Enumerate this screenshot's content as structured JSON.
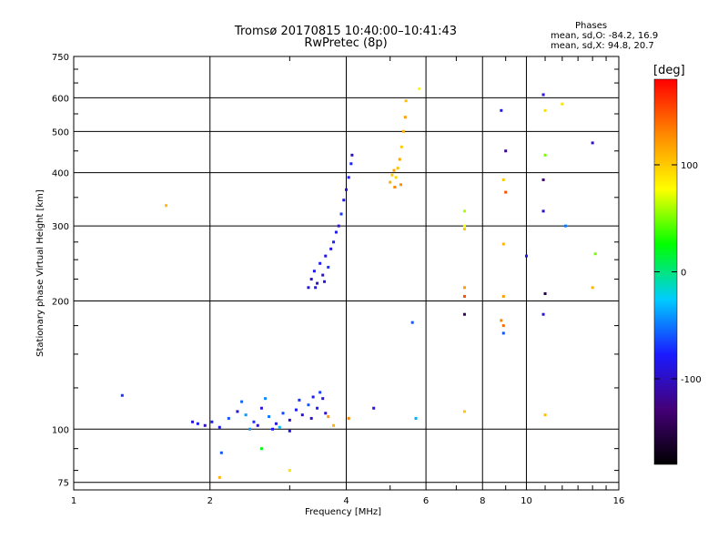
{
  "header": {
    "title_line1": "Tromsø 20170815 10:40:00–10:41:43",
    "title_line2": "RwPretec (8p)"
  },
  "phase_stats": {
    "heading": "Phases",
    "line_o": "mean, sd,O: -84.2, 16.9",
    "line_x": "mean, sd,X:  94.8, 20.7"
  },
  "chart_data": {
    "type": "scatter",
    "xlabel": "Frequency [MHz]",
    "ylabel": "Stationary phase Virtual Height [km]",
    "x_scale": "log",
    "y_scale": "log",
    "xlim": [
      1,
      16
    ],
    "ylim": [
      72,
      750
    ],
    "x_ticks": [
      1,
      2,
      4,
      6,
      8,
      10,
      16
    ],
    "y_ticks": [
      75,
      100,
      200,
      300,
      400,
      500,
      600,
      750
    ],
    "grid": true,
    "colorbar": {
      "label": "[deg]",
      "range": [
        -180,
        180
      ],
      "ticks": [
        100,
        0,
        -100
      ],
      "colormap": "rainbow",
      "colors": [
        "#000000",
        "#440077",
        "#1a1aff",
        "#00ccff",
        "#00ff00",
        "#ffff00",
        "#ff8800",
        "#ff0000"
      ]
    },
    "series": [
      {
        "points": [
          [
            1.28,
            120,
            -70
          ],
          [
            1.83,
            104,
            -90
          ],
          [
            1.88,
            103,
            -80
          ],
          [
            1.95,
            102,
            -100
          ],
          [
            2.02,
            104,
            -75
          ],
          [
            2.1,
            101,
            -85
          ],
          [
            2.2,
            106,
            -60
          ],
          [
            2.3,
            110,
            -95
          ],
          [
            2.4,
            108,
            -40
          ],
          [
            2.5,
            104,
            -70
          ],
          [
            2.6,
            112,
            -88
          ],
          [
            2.7,
            107,
            -50
          ],
          [
            2.8,
            103,
            -90
          ],
          [
            2.9,
            109,
            -65
          ],
          [
            3.0,
            105,
            -100
          ],
          [
            3.1,
            111,
            -80
          ],
          [
            3.2,
            108,
            -92
          ],
          [
            3.3,
            114,
            -60
          ],
          [
            3.35,
            106,
            -98
          ],
          [
            3.45,
            112,
            -75
          ],
          [
            3.55,
            118,
            -85
          ],
          [
            3.6,
            109,
            -95
          ],
          [
            3.65,
            107,
            120
          ],
          [
            3.75,
            102,
            110
          ],
          [
            2.35,
            116,
            -55
          ],
          [
            2.65,
            118,
            -45
          ],
          [
            3.15,
            117,
            -70
          ],
          [
            3.38,
            119,
            -80
          ],
          [
            3.5,
            122,
            -65
          ],
          [
            2.45,
            100,
            -40
          ],
          [
            2.85,
            101,
            -30
          ],
          [
            2.12,
            88,
            -60
          ],
          [
            4.05,
            106,
            130
          ],
          [
            4.6,
            112,
            -90
          ],
          [
            5.7,
            106,
            -35
          ],
          [
            3.0,
            99,
            -90
          ],
          [
            2.75,
            100,
            -80
          ],
          [
            2.55,
            102,
            -100
          ],
          [
            3.3,
            215,
            -90
          ],
          [
            3.35,
            225,
            -100
          ],
          [
            3.4,
            235,
            -85
          ],
          [
            3.45,
            220,
            -95
          ],
          [
            3.5,
            245,
            -80
          ],
          [
            3.55,
            230,
            -92
          ],
          [
            3.6,
            255,
            -88
          ],
          [
            3.65,
            240,
            -70
          ],
          [
            3.7,
            265,
            -85
          ],
          [
            3.75,
            275,
            -75
          ],
          [
            3.8,
            290,
            -80
          ],
          [
            3.85,
            300,
            -90
          ],
          [
            3.9,
            320,
            -70
          ],
          [
            3.95,
            345,
            -85
          ],
          [
            4.0,
            365,
            -95
          ],
          [
            4.05,
            390,
            -80
          ],
          [
            4.1,
            420,
            -75
          ],
          [
            4.12,
            440,
            -100
          ],
          [
            3.42,
            215,
            -80
          ],
          [
            3.58,
            222,
            -90
          ],
          [
            5.0,
            380,
            110
          ],
          [
            5.05,
            395,
            100
          ],
          [
            5.1,
            405,
            120
          ],
          [
            5.15,
            390,
            95
          ],
          [
            5.2,
            410,
            105
          ],
          [
            5.25,
            430,
            115
          ],
          [
            5.3,
            460,
            100
          ],
          [
            5.35,
            500,
            110
          ],
          [
            5.4,
            540,
            120
          ],
          [
            5.42,
            590,
            105
          ],
          [
            5.12,
            370,
            130
          ],
          [
            5.28,
            375,
            125
          ],
          [
            5.8,
            630,
            80
          ],
          [
            5.6,
            178,
            -60
          ],
          [
            1.6,
            335,
            105
          ],
          [
            7.3,
            325,
            60
          ],
          [
            7.3,
            300,
            75
          ],
          [
            7.3,
            295,
            100
          ],
          [
            7.3,
            215,
            120
          ],
          [
            7.3,
            205,
            150
          ],
          [
            7.3,
            186,
            -140
          ],
          [
            7.3,
            110,
            100
          ],
          [
            8.8,
            560,
            -80
          ],
          [
            9.0,
            450,
            -120
          ],
          [
            8.9,
            385,
            100
          ],
          [
            9.0,
            360,
            150
          ],
          [
            8.9,
            272,
            110
          ],
          [
            8.9,
            205,
            120
          ],
          [
            8.8,
            180,
            130
          ],
          [
            8.9,
            175,
            140
          ],
          [
            8.9,
            168,
            -60
          ],
          [
            10.9,
            610,
            -90
          ],
          [
            11.0,
            560,
            90
          ],
          [
            11.0,
            440,
            50
          ],
          [
            10.9,
            385,
            -130
          ],
          [
            10.9,
            325,
            -100
          ],
          [
            12.0,
            580,
            90
          ],
          [
            12.2,
            300,
            -50
          ],
          [
            11.0,
            208,
            -150
          ],
          [
            10.9,
            186,
            -90
          ],
          [
            11.0,
            108,
            105
          ],
          [
            14.0,
            470,
            -100
          ],
          [
            14.2,
            258,
            50
          ],
          [
            14.0,
            215,
            110
          ],
          [
            10.0,
            255,
            -80
          ],
          [
            2.6,
            90,
            20
          ],
          [
            3.0,
            80,
            90
          ],
          [
            2.1,
            77,
            110
          ]
        ]
      }
    ]
  }
}
